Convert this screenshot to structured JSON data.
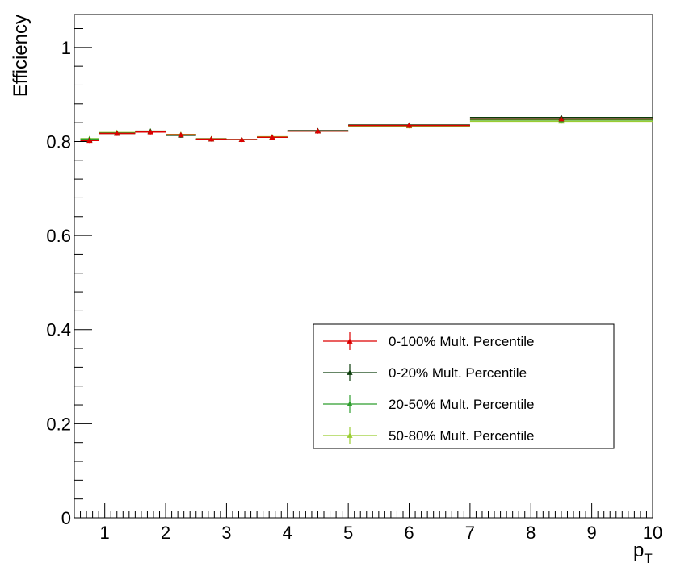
{
  "chart_data": {
    "type": "scatter",
    "xlabel_main": "p",
    "xlabel_sub": "T",
    "ylabel": "Efficiency",
    "xlim": [
      0.5,
      10
    ],
    "ylim": [
      0,
      1.07
    ],
    "x_ticks": [
      1,
      2,
      3,
      4,
      5,
      6,
      7,
      8,
      9,
      10
    ],
    "y_ticks": [
      0,
      0.2,
      0.4,
      0.6,
      0.8,
      1
    ],
    "y_tick_labels": [
      "0",
      "0.2",
      "0.4",
      "0.6",
      "0.8",
      "1"
    ],
    "x_tick_labels": [
      "1",
      "2",
      "3",
      "4",
      "5",
      "6",
      "7",
      "8",
      "9",
      "10"
    ],
    "grid": false,
    "legend_position": "bottom-right",
    "bins": [
      [
        0.6,
        0.9
      ],
      [
        0.9,
        1.5
      ],
      [
        1.5,
        2.0
      ],
      [
        2.0,
        2.5
      ],
      [
        2.5,
        3.0
      ],
      [
        3.0,
        3.5
      ],
      [
        3.5,
        4.0
      ],
      [
        4.0,
        5.0
      ],
      [
        5.0,
        7.0
      ],
      [
        7.0,
        10.0
      ]
    ],
    "series": [
      {
        "name": "50-80% Mult. Percentile",
        "color": "#9acd32",
        "values": [
          0.806,
          0.819,
          0.821,
          0.815,
          0.806,
          0.804,
          0.81,
          0.822,
          0.833,
          0.843
        ]
      },
      {
        "name": "20-50% Mult. Percentile",
        "color": "#2e9e2e",
        "values": [
          0.805,
          0.818,
          0.822,
          0.814,
          0.805,
          0.804,
          0.809,
          0.822,
          0.834,
          0.846
        ]
      },
      {
        "name": "0-20% Mult. Percentile",
        "color": "#0b3d0b",
        "values": [
          0.803,
          0.817,
          0.821,
          0.813,
          0.805,
          0.804,
          0.809,
          0.823,
          0.835,
          0.851
        ]
      },
      {
        "name": "0-100% Mult. Percentile",
        "color": "#dd0000",
        "values": [
          0.802,
          0.817,
          0.82,
          0.814,
          0.805,
          0.804,
          0.809,
          0.822,
          0.834,
          0.848
        ]
      }
    ],
    "legend_order": [
      3,
      2,
      1,
      0
    ]
  }
}
